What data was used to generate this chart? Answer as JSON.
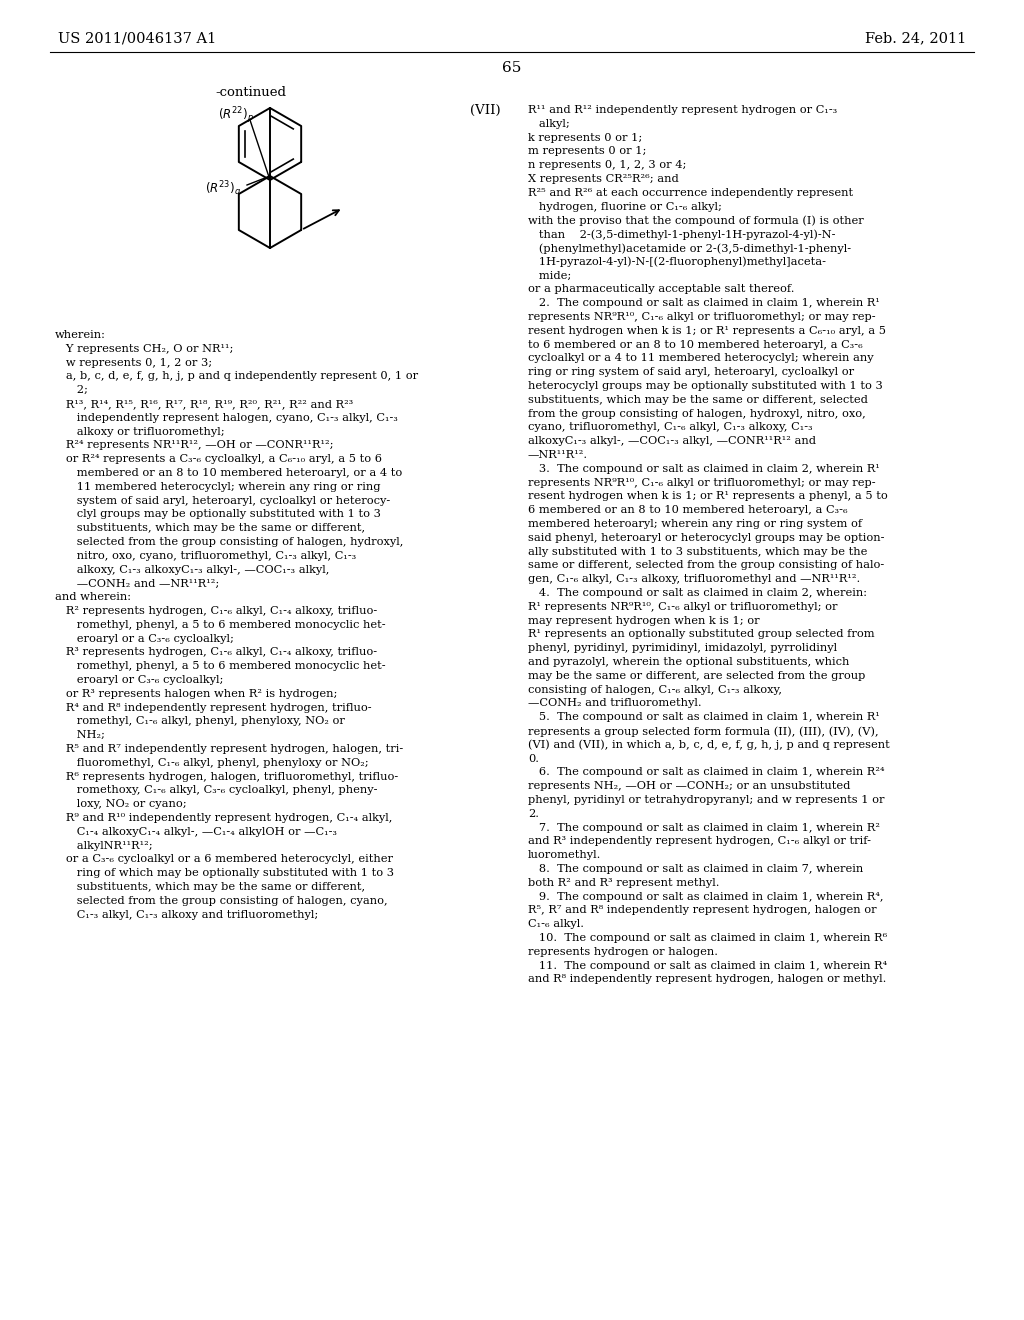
{
  "page_header_left": "US 2011/0046137 A1",
  "page_header_right": "Feb. 24, 2011",
  "page_number": "65",
  "bg_color": "#ffffff",
  "text_color": "#000000",
  "formula_label": "-continued",
  "formula_roman": "(VII)",
  "left_col_lines": [
    "wherein:",
    "   Y represents CH₂, O or NR¹¹;",
    "   w represents 0, 1, 2 or 3;",
    "   a, b, c, d, e, f, g, h, j, p and q independently represent 0, 1 or",
    "      2;",
    "   R¹³, R¹⁴, R¹⁵, R¹⁶, R¹⁷, R¹⁸, R¹⁹, R²⁰, R²¹, R²² and R²³",
    "      independently represent halogen, cyano, C₁-₃ alkyl, C₁-₃",
    "      alkoxy or trifluoromethyl;",
    "   R²⁴ represents NR¹¹R¹², —OH or —CONR¹¹R¹²;",
    "   or R²⁴ represents a C₃-₆ cycloalkyl, a C₆-₁₀ aryl, a 5 to 6",
    "      membered or an 8 to 10 membered heteroaryl, or a 4 to",
    "      11 membered heterocyclyl; wherein any ring or ring",
    "      system of said aryl, heteroaryl, cycloalkyl or heterocy-",
    "      clyl groups may be optionally substituted with 1 to 3",
    "      substituents, which may be the same or different,",
    "      selected from the group consisting of halogen, hydroxyl,",
    "      nitro, oxo, cyano, trifluoromethyl, C₁-₃ alkyl, C₁-₃",
    "      alkoxy, C₁-₃ alkoxyC₁-₃ alkyl-, —COC₁-₃ alkyl,",
    "      —CONH₂ and —NR¹¹R¹²;",
    "and wherein:",
    "   R² represents hydrogen, C₁-₆ alkyl, C₁-₄ alkoxy, trifluo-",
    "      romethyl, phenyl, a 5 to 6 membered monocyclic het-",
    "      eroaryl or a C₃-₆ cycloalkyl;",
    "   R³ represents hydrogen, C₁-₆ alkyl, C₁-₄ alkoxy, trifluo-",
    "      romethyl, phenyl, a 5 to 6 membered monocyclic het-",
    "      eroaryl or C₃-₆ cycloalkyl;",
    "   or R³ represents halogen when R² is hydrogen;",
    "   R⁴ and R⁸ independently represent hydrogen, trifluo-",
    "      romethyl, C₁-₆ alkyl, phenyl, phenyloxy, NO₂ or",
    "      NH₂;",
    "   R⁵ and R⁷ independently represent hydrogen, halogen, tri-",
    "      fluoromethyl, C₁-₆ alkyl, phenyl, phenyloxy or NO₂;",
    "   R⁶ represents hydrogen, halogen, trifluoromethyl, trifluo-",
    "      romethoxy, C₁-₆ alkyl, C₃-₆ cycloalkyl, phenyl, pheny-",
    "      loxy, NO₂ or cyano;",
    "   R⁹ and R¹⁰ independently represent hydrogen, C₁-₄ alkyl,",
    "      C₁-₄ alkoxyC₁-₄ alkyl-, —C₁-₄ alkylOH or —C₁-₃",
    "      alkylNR¹¹R¹²;",
    "   or a C₃-₆ cycloalkyl or a 6 membered heterocyclyl, either",
    "      ring of which may be optionally substituted with 1 to 3",
    "      substituents, which may be the same or different,",
    "      selected from the group consisting of halogen, cyano,",
    "      C₁-₃ alkyl, C₁-₃ alkoxy and trifluoromethyl;"
  ],
  "right_col_lines": [
    "R¹¹ and R¹² independently represent hydrogen or C₁-₃",
    "   alkyl;",
    "k represents 0 or 1;",
    "m represents 0 or 1;",
    "n represents 0, 1, 2, 3 or 4;",
    "X represents CR²⁵R²⁶; and",
    "R²⁵ and R²⁶ at each occurrence independently represent",
    "   hydrogen, fluorine or C₁-₆ alkyl;",
    "with the proviso that the compound of formula (I) is other",
    "   than    2-(3,5-dimethyl-1-phenyl-1H-pyrazol-4-yl)-N-",
    "   (phenylmethyl)acetamide or 2-(3,5-dimethyl-1-phenyl-",
    "   1H-pyrazol-4-yl)-N-[(2-fluorophenyl)methyl]aceta-",
    "   mide;",
    "or a pharmaceutically acceptable salt thereof.",
    "   2.  The compound or salt as claimed in claim 1, wherein R¹",
    "represents NR⁹R¹⁰, C₁-₆ alkyl or trifluoromethyl; or may rep-",
    "resent hydrogen when k is 1; or R¹ represents a C₆-₁₀ aryl, a 5",
    "to 6 membered or an 8 to 10 membered heteroaryl, a C₃-₆",
    "cycloalkyl or a 4 to 11 membered heterocyclyl; wherein any",
    "ring or ring system of said aryl, heteroaryl, cycloalkyl or",
    "heterocyclyl groups may be optionally substituted with 1 to 3",
    "substituents, which may be the same or different, selected",
    "from the group consisting of halogen, hydroxyl, nitro, oxo,",
    "cyano, trifluoromethyl, C₁-₆ alkyl, C₁-₃ alkoxy, C₁-₃",
    "alkoxyC₁-₃ alkyl-, —COC₁-₃ alkyl, —CONR¹¹R¹² and",
    "—NR¹¹R¹².",
    "   3.  The compound or salt as claimed in claim 2, wherein R¹",
    "represents NR⁹R¹⁰, C₁-₆ alkyl or trifluoromethyl; or may rep-",
    "resent hydrogen when k is 1; or R¹ represents a phenyl, a 5 to",
    "6 membered or an 8 to 10 membered heteroaryl, a C₃-₆",
    "membered heteroaryl; wherein any ring or ring system of",
    "said phenyl, heteroaryl or heterocyclyl groups may be option-",
    "ally substituted with 1 to 3 substituents, which may be the",
    "same or different, selected from the group consisting of halo-",
    "gen, C₁-₆ alkyl, C₁-₃ alkoxy, trifluoromethyl and —NR¹¹R¹².",
    "   4.  The compound or salt as claimed in claim 2, wherein:",
    "R¹ represents NR⁹R¹⁰, C₁-₆ alkyl or trifluoromethyl; or",
    "may represent hydrogen when k is 1; or",
    "R¹ represents an optionally substituted group selected from",
    "phenyl, pyridinyl, pyrimidinyl, imidazolyl, pyrrolidinyl",
    "and pyrazolyl, wherein the optional substituents, which",
    "may be the same or different, are selected from the group",
    "consisting of halogen, C₁-₆ alkyl, C₁-₃ alkoxy,",
    "—CONH₂ and trifluoromethyl.",
    "   5.  The compound or salt as claimed in claim 1, wherein R¹",
    "represents a group selected form formula (II), (III), (IV), (V),",
    "(VI) and (VII), in which a, b, c, d, e, f, g, h, j, p and q represent",
    "0.",
    "   6.  The compound or salt as claimed in claim 1, wherein R²⁴",
    "represents NH₂, —OH or —CONH₂; or an unsubstituted",
    "phenyl, pyridinyl or tetrahydropyranyl; and w represents 1 or",
    "2.",
    "   7.  The compound or salt as claimed in claim 1, wherein R²",
    "and R³ independently represent hydrogen, C₁-₆ alkyl or trif-",
    "luoromethyl.",
    "   8.  The compound or salt as claimed in claim 7, wherein",
    "both R² and R³ represent methyl.",
    "   9.  The compound or salt as claimed in claim 1, wherein R⁴,",
    "R⁵, R⁷ and R⁸ independently represent hydrogen, halogen or",
    "C₁-₆ alkyl.",
    "   10.  The compound or salt as claimed in claim 1, wherein R⁶",
    "represents hydrogen or halogen.",
    "   11.  The compound or salt as claimed in claim 1, wherein R⁴",
    "and R⁸ independently represent hydrogen, halogen or methyl."
  ]
}
